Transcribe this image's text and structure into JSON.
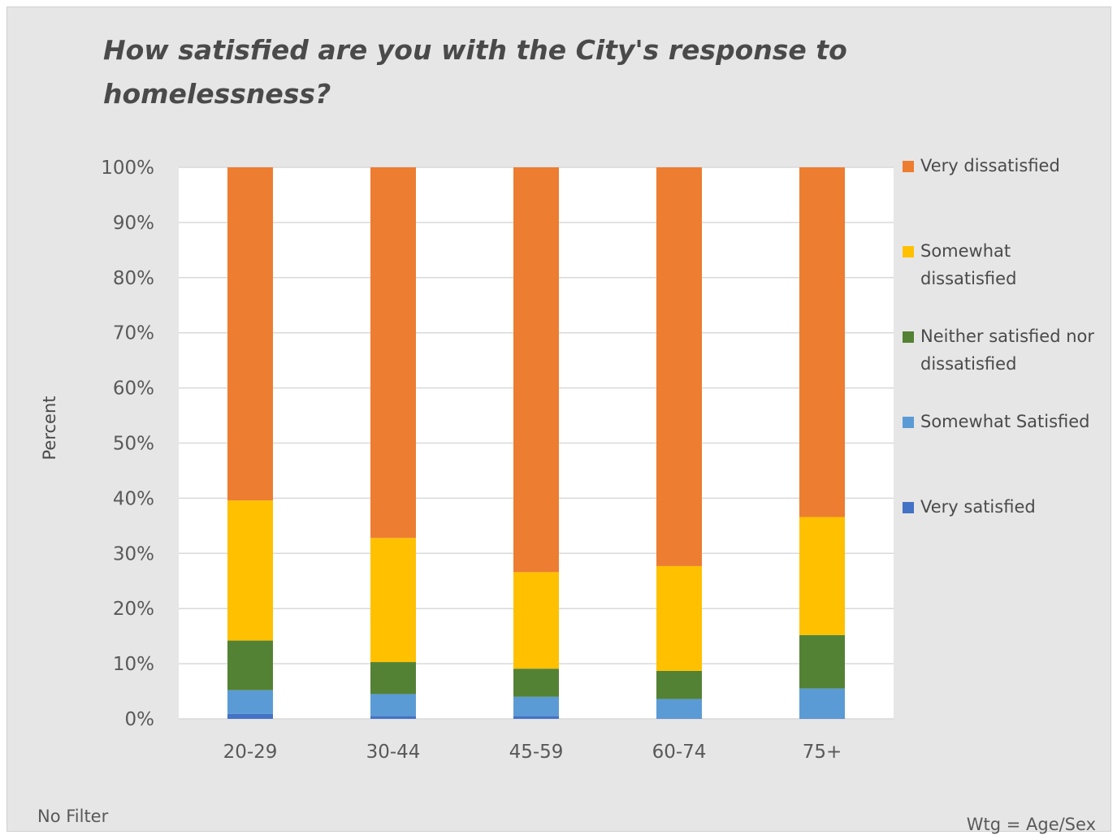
{
  "chart_data": {
    "type": "bar",
    "stacked": true,
    "title": "How satisfied are you with the City's response to homelessness?",
    "ylabel": "Percent",
    "xlabel": "",
    "ylim": [
      0,
      100
    ],
    "yticks": [
      "0%",
      "10%",
      "20%",
      "30%",
      "40%",
      "50%",
      "60%",
      "70%",
      "80%",
      "90%",
      "100%"
    ],
    "grid": true,
    "legend_position": "right",
    "categories": [
      "20-29",
      "30-44",
      "45-59",
      "60-74",
      "75+"
    ],
    "series": [
      {
        "name": "Very satisfied",
        "color": "#4472c4",
        "values": [
          0.9,
          0.5,
          0.5,
          0.1,
          0.1
        ]
      },
      {
        "name": "Somewhat Satisfied",
        "color": "#5b9bd5",
        "values": [
          4.3,
          4.0,
          3.5,
          3.5,
          5.4
        ]
      },
      {
        "name": "Neither satisfied nor dissatisfied",
        "color": "#548235",
        "values": [
          9.0,
          5.8,
          5.1,
          5.1,
          9.7
        ]
      },
      {
        "name": "Somewhat dissatisfied",
        "color": "#ffc000",
        "values": [
          25.4,
          22.5,
          17.5,
          19.0,
          21.4
        ]
      },
      {
        "name": "Very dissatisfied",
        "color": "#ed7d31",
        "values": [
          60.4,
          67.2,
          73.4,
          72.3,
          63.4
        ]
      }
    ]
  },
  "footer": {
    "left": "No Filter",
    "right": "Wtg = Age/Sex"
  }
}
